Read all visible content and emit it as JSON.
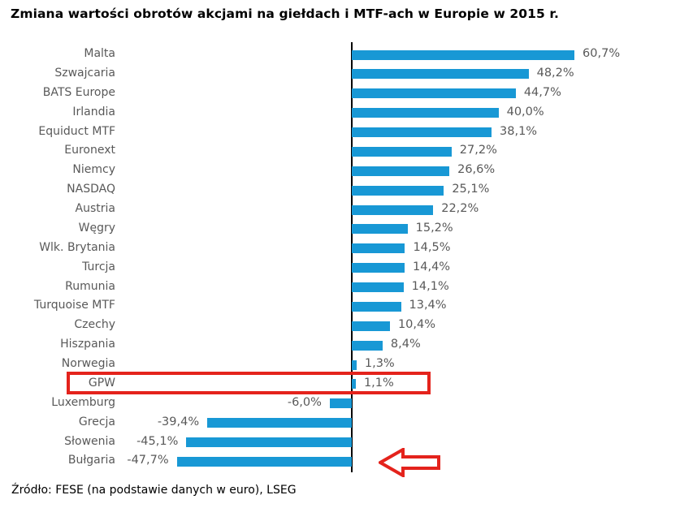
{
  "chart_data": {
    "type": "bar",
    "orientation": "horizontal",
    "title": "Zmiana wartości obrotów akcjami na giełdach i MTF-ach w Europie w 2015 r.",
    "categories": [
      "Malta",
      "Szwajcaria",
      "BATS Europe",
      "Irlandia",
      "Equiduct MTF",
      "Euronext",
      "Niemcy",
      "NASDAQ",
      "Austria",
      "Węgry",
      "Wlk. Brytania",
      "Turcja",
      "Rumunia",
      "Turquoise MTF",
      "Czechy",
      "Hiszpania",
      "Norwegia",
      "GPW",
      "Luxemburg",
      "Grecja",
      "Słowenia",
      "Bułgaria"
    ],
    "values": [
      60.7,
      48.2,
      44.7,
      40.0,
      38.1,
      27.2,
      26.6,
      25.1,
      22.2,
      15.2,
      14.5,
      14.4,
      14.1,
      13.4,
      10.4,
      8.4,
      1.3,
      1.1,
      -6.0,
      -39.4,
      -45.1,
      -47.7
    ],
    "value_labels": [
      "60,7%",
      "48,2%",
      "44,7%",
      "40,0%",
      "38,1%",
      "27,2%",
      "26,6%",
      "25,1%",
      "22,2%",
      "15,2%",
      "14,5%",
      "14,4%",
      "14,1%",
      "13,4%",
      "10,4%",
      "8,4%",
      "1,3%",
      "1,1%",
      "-6,0%",
      "-39,4%",
      "-45,1%",
      "-47,7%"
    ],
    "xlim": [
      -50,
      65
    ],
    "grid": false,
    "legend": false,
    "bar_color": "#1898d5",
    "label_color": "#595959",
    "axis_color": "#000000",
    "annotation_color": "#e4231c",
    "highlight": {
      "category": "GPW",
      "shape": "box"
    },
    "arrow": {
      "target": "Bułgaria",
      "direction": "left",
      "style": "outline"
    },
    "source": "Źródło: FESE (na podstawie danych w euro), LSEG"
  }
}
